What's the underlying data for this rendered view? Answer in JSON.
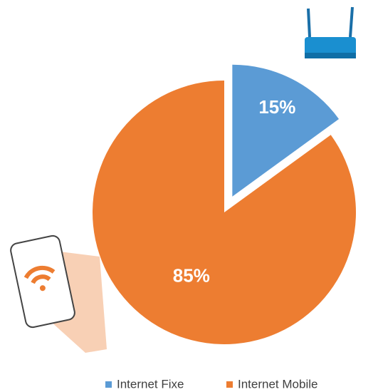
{
  "chart_data": {
    "type": "pie",
    "categories": [
      "Internet Fixe",
      "Internet Mobile"
    ],
    "values": [
      15,
      85
    ],
    "value_labels": [
      "15%",
      "85%"
    ],
    "colors": [
      "#5b9bd5",
      "#ed7d31"
    ],
    "legend": "bottom"
  }
}
